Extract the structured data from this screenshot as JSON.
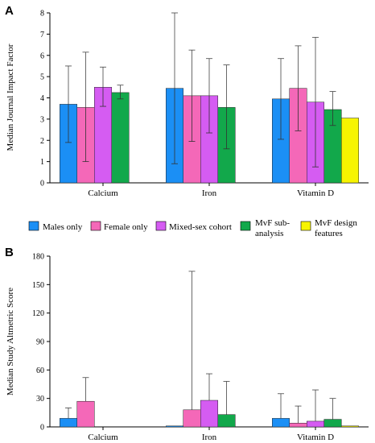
{
  "colors": [
    "#1b8ff5",
    "#f468b8",
    "#d55cf2",
    "#12a84b",
    "#f7f400"
  ],
  "legend": [
    "Males only",
    "Female only",
    "Mixed-sex cohort",
    "MvF sub-analysis",
    "MvF design features"
  ],
  "chart_data": [
    {
      "panel": "A",
      "type": "bar",
      "ylabel": "Median Journal Impact Factor",
      "ylim": [
        0,
        8
      ],
      "yticks": [
        0,
        1,
        2,
        3,
        4,
        5,
        6,
        7,
        8
      ],
      "categories": [
        "Calcium",
        "Iron",
        "Vitamin D"
      ],
      "series": [
        {
          "name": "Males only",
          "values": [
            3.7,
            4.45,
            3.95
          ],
          "err_low": [
            1.9,
            0.9,
            2.05
          ],
          "err_high": [
            5.5,
            8.0,
            5.85
          ]
        },
        {
          "name": "Female only",
          "values": [
            3.55,
            4.1,
            4.45
          ],
          "err_low": [
            1.0,
            1.95,
            2.45
          ],
          "err_high": [
            6.15,
            6.25,
            6.45
          ]
        },
        {
          "name": "Mixed-sex cohort",
          "values": [
            4.5,
            4.1,
            3.8
          ],
          "err_low": [
            3.6,
            2.35,
            0.75
          ],
          "err_high": [
            5.45,
            5.85,
            6.85
          ]
        },
        {
          "name": "MvF sub-analysis",
          "values": [
            4.25,
            3.55,
            3.45
          ],
          "err_low": [
            3.95,
            1.6,
            2.7
          ],
          "err_high": [
            4.6,
            5.55,
            4.3
          ]
        },
        {
          "name": "MvF design features",
          "values": [
            null,
            null,
            3.05
          ],
          "err_low": [
            null,
            null,
            null
          ],
          "err_high": [
            null,
            null,
            null
          ]
        }
      ]
    },
    {
      "panel": "B",
      "type": "bar",
      "ylabel": "Median Study Altmetric Score",
      "ylim": [
        0,
        180
      ],
      "yticks": [
        0,
        30,
        60,
        90,
        120,
        150,
        180
      ],
      "categories": [
        "Calcium",
        "Iron",
        "Vitamin D"
      ],
      "series": [
        {
          "name": "Males only",
          "values": [
            9,
            1,
            9
          ],
          "err_low": [
            null,
            null,
            null
          ],
          "err_high": [
            20,
            null,
            35
          ]
        },
        {
          "name": "Female only",
          "values": [
            27,
            18,
            4
          ],
          "err_low": [
            null,
            null,
            null
          ],
          "err_high": [
            52,
            164,
            22
          ]
        },
        {
          "name": "Mixed-sex cohort",
          "values": [
            null,
            28,
            6
          ],
          "err_low": [
            null,
            null,
            null
          ],
          "err_high": [
            null,
            56,
            39
          ]
        },
        {
          "name": "MvF sub-analysis",
          "values": [
            null,
            13,
            8
          ],
          "err_low": [
            null,
            null,
            null
          ],
          "err_high": [
            null,
            48,
            30
          ]
        },
        {
          "name": "MvF design features",
          "values": [
            null,
            null,
            1
          ],
          "err_low": [
            null,
            null,
            null
          ],
          "err_high": [
            null,
            null,
            null
          ]
        }
      ]
    }
  ]
}
